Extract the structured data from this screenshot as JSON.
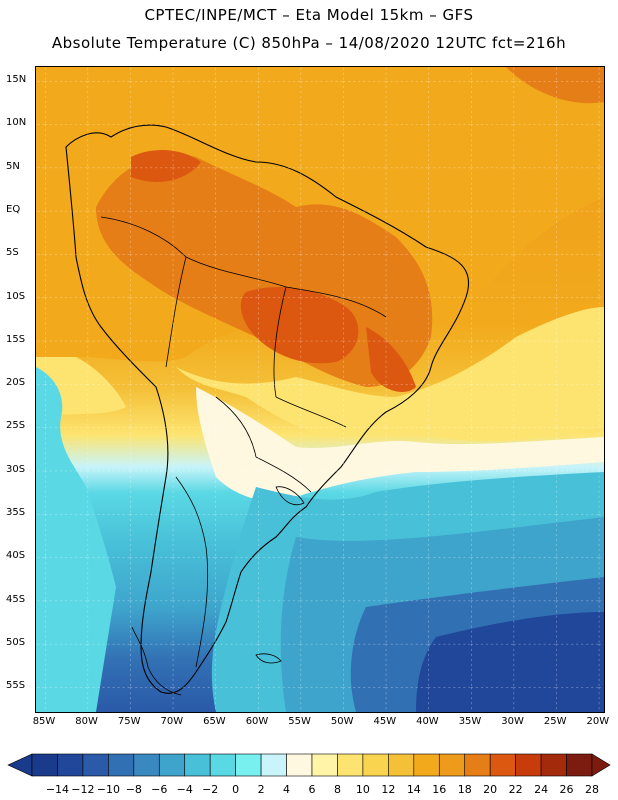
{
  "header": {
    "line1": "CPTEC/INPE/MCT –  Eta Model 15km – GFS",
    "line2": "Absolute Temperature (C) 850hPa – 14/08/2020 12UTC fct=216h"
  },
  "map": {
    "region": "South America",
    "latitude_labels": [
      "15N",
      "10N",
      "5N",
      "EQ",
      "5S",
      "10S",
      "15S",
      "20S",
      "25S",
      "30S",
      "35S",
      "40S",
      "45S",
      "50S",
      "55S"
    ],
    "longitude_labels": [
      "85W",
      "80W",
      "75W",
      "70W",
      "65W",
      "60W",
      "55W",
      "50W",
      "45W",
      "40W",
      "35W",
      "30W",
      "25W",
      "20W"
    ]
  },
  "legend": {
    "unit": "C",
    "labels": [
      "-14",
      "-12",
      "-10",
      "-8",
      "-6",
      "-4",
      "-2",
      "0",
      "2",
      "4",
      "6",
      "8",
      "10",
      "12",
      "14",
      "16",
      "18",
      "20",
      "22",
      "24",
      "26",
      "28"
    ],
    "colors": [
      "#1a3a8c",
      "#20479a",
      "#2a5aa8",
      "#3270b4",
      "#3a88c0",
      "#3ea4cc",
      "#48c0d8",
      "#5ad8e4",
      "#78f0f0",
      "#c8f4fa",
      "#fff8e0",
      "#fff4a8",
      "#fde470",
      "#f9d44e",
      "#f4c038",
      "#f2aa1c",
      "#ee9a1a",
      "#e67e18",
      "#dc5810",
      "#c83c0c",
      "#a42a0c",
      "#7c1c10"
    ]
  }
}
